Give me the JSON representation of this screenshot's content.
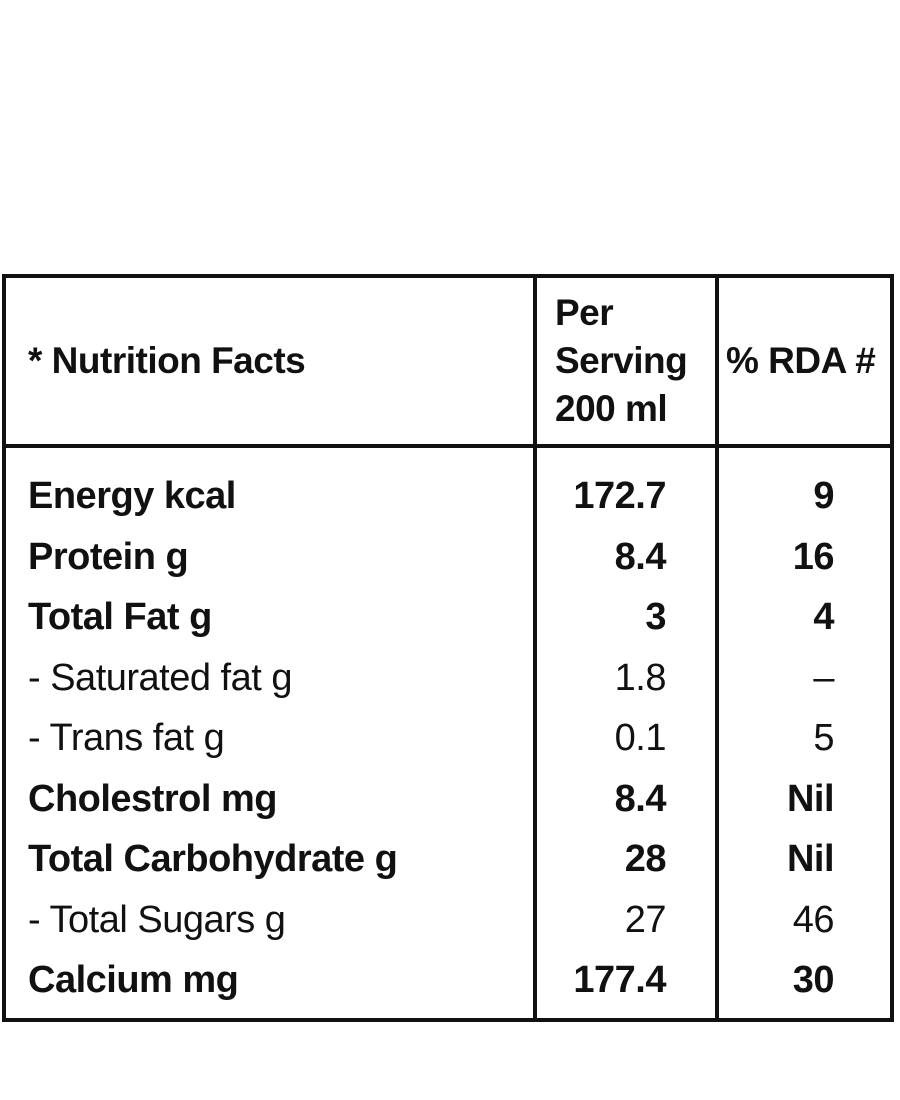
{
  "table": {
    "header": {
      "label": "* Nutrition Facts",
      "per_serving": [
        "Per",
        "Serving",
        "200 ml"
      ],
      "rda": "% RDA #"
    },
    "rows": [
      {
        "name": "Energy kcal",
        "serving": "172.7",
        "rda": "9",
        "bold": true
      },
      {
        "name": "Protein g",
        "serving": "8.4",
        "rda": "16",
        "bold": true
      },
      {
        "name": "Total Fat g",
        "serving": "3",
        "rda": "4",
        "bold": true
      },
      {
        "name": "- Saturated fat g",
        "serving": "1.8",
        "rda": "–",
        "bold": false
      },
      {
        "name": "- Trans fat g",
        "serving": "0.1",
        "rda": "5",
        "bold": false
      },
      {
        "name": "Cholestrol mg",
        "serving": "8.4",
        "rda": "Nil",
        "bold": true
      },
      {
        "name": "Total Carbohydrate g",
        "serving": "28",
        "rda": "Nil",
        "bold": true
      },
      {
        "name": "- Total Sugars g",
        "serving": "27",
        "rda": "46",
        "bold": false
      },
      {
        "name": "Calcium mg",
        "serving": "177.4",
        "rda": "30",
        "bold": true
      }
    ]
  }
}
